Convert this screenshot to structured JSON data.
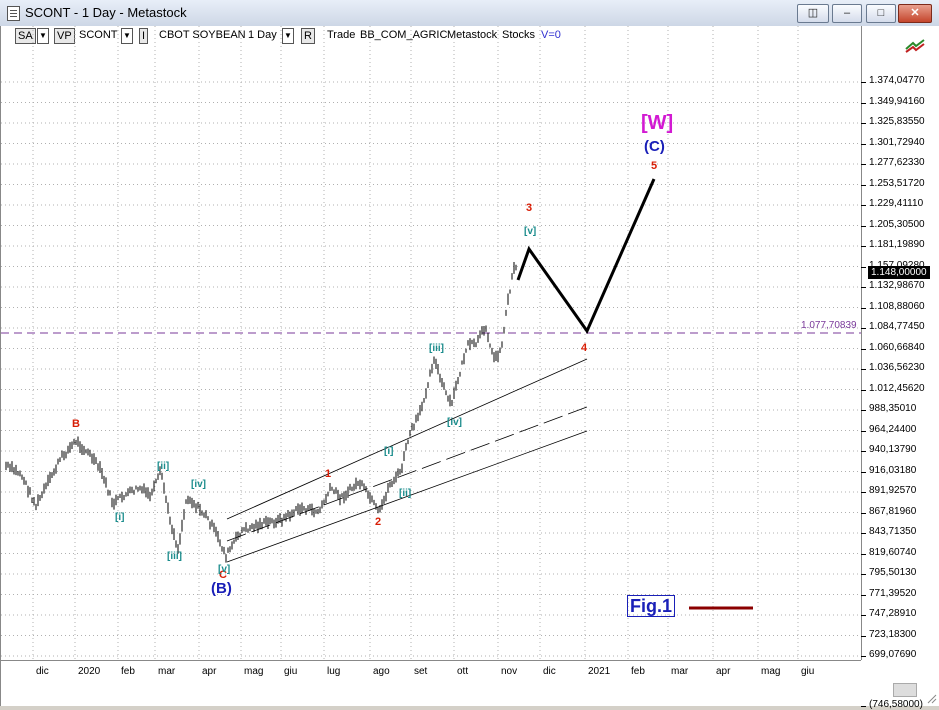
{
  "window": {
    "title": "SCONT - 1 Day - Metastock"
  },
  "toolbar": {
    "sa": "SA",
    "vp": "VP",
    "symbol": "SCONT",
    "pane_btn": "I",
    "instrument": "CBOT SOYBEAN",
    "period": "1 Day",
    "r_btn": "R",
    "trade": "Trade",
    "security": "BB_COM_AGRIC",
    "app": "Metastock",
    "type": "Stocks",
    "v": "V=0"
  },
  "y_axis": {
    "labels": [
      "1.374,04770",
      "1.349,94160",
      "1.325,83550",
      "1.301,72940",
      "1.277,62330",
      "1.253,51720",
      "1.229,41110",
      "1.205,30500",
      "1.181,19890",
      "1.157,09280",
      "1.132,98670",
      "1.108,88060",
      "1.084,77450",
      "1.060,66840",
      "1.036,56230",
      "1.012,45620",
      "988,35010",
      "964,24400",
      "940,13790",
      "916,03180",
      "891,92570",
      "867,81960",
      "843,71350",
      "819,60740",
      "795,50130",
      "771,39520",
      "747,28910",
      "723,18300",
      "699,07690",
      "(746,58000)"
    ],
    "last_price": "1.148,00000",
    "hline_value": "1.077,70839"
  },
  "x_axis": {
    "labels": [
      "dic",
      "2020",
      "feb",
      "mar",
      "apr",
      "mag",
      "giu",
      "lug",
      "ago",
      "set",
      "ott",
      "nov",
      "dic",
      "2021",
      "feb",
      "mar",
      "apr",
      "mag",
      "giu"
    ]
  },
  "waves": {
    "B": "B",
    "C": "C",
    "paren_B": "(B)",
    "i1": "[i]",
    "ii1": "[ii]",
    "iii1": "[iii]",
    "iv1": "[iv]",
    "v1": "[v]",
    "one": "1",
    "two": "2",
    "three": "3",
    "four": "4",
    "five": "5",
    "i2": "[i]",
    "ii2": "[ii]",
    "iii2": "[iii]",
    "iv2": "[iv]",
    "v2": "[v]",
    "paren_C": "(C)",
    "W": "[W]"
  },
  "figure_label": "Fig.1",
  "colors": {
    "grid": "#b0b0b0",
    "price_bars": "#000000",
    "projection": "#000000",
    "channel": "#000000",
    "hline": "#7a3a9a",
    "wave_red": "#d81e06",
    "wave_teal": "#1a8c8c",
    "wave_blue": "#1a20b8",
    "wave_magenta": "#d21ad2",
    "fig_line": "#8b0000"
  }
}
